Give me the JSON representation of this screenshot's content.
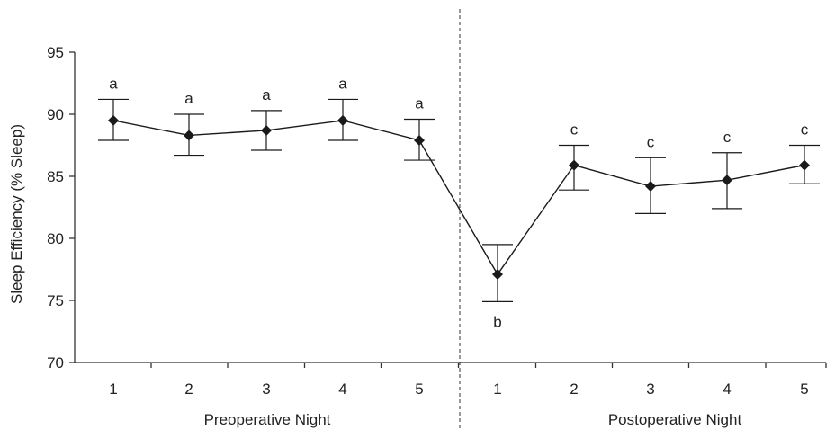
{
  "chart_data": {
    "type": "line",
    "ylabel": "Sleep Efficiency (% Sleep)",
    "ylim": [
      70,
      95
    ],
    "yticks": [
      "70",
      "75",
      "80",
      "85",
      "90",
      "95"
    ],
    "groups": [
      {
        "label": "Preoperative Night",
        "categories": [
          "1",
          "2",
          "3",
          "4",
          "5"
        ]
      },
      {
        "label": "Postoperative Night",
        "categories": [
          "1",
          "2",
          "3",
          "4",
          "5"
        ]
      }
    ],
    "series": [
      {
        "values": [
          89.5,
          88.3,
          88.7,
          89.5,
          87.9,
          77.1,
          85.9,
          84.2,
          84.7,
          85.9
        ],
        "err_upper": [
          91.2,
          90.0,
          90.3,
          91.2,
          89.6,
          79.5,
          87.5,
          86.5,
          86.9,
          87.5
        ],
        "err_lower": [
          87.9,
          86.7,
          87.1,
          87.9,
          86.3,
          74.9,
          83.9,
          82.0,
          82.4,
          84.4
        ],
        "labels": [
          "a",
          "a",
          "a",
          "a",
          "a",
          "b",
          "c",
          "c",
          "c",
          "c"
        ]
      }
    ],
    "divider": "dashed vertical line between Preoperative and Postoperative nights",
    "grid": false,
    "colors": {
      "line": "#1a1a1a",
      "marker": "#1a1a1a",
      "axis": "#333333"
    }
  }
}
